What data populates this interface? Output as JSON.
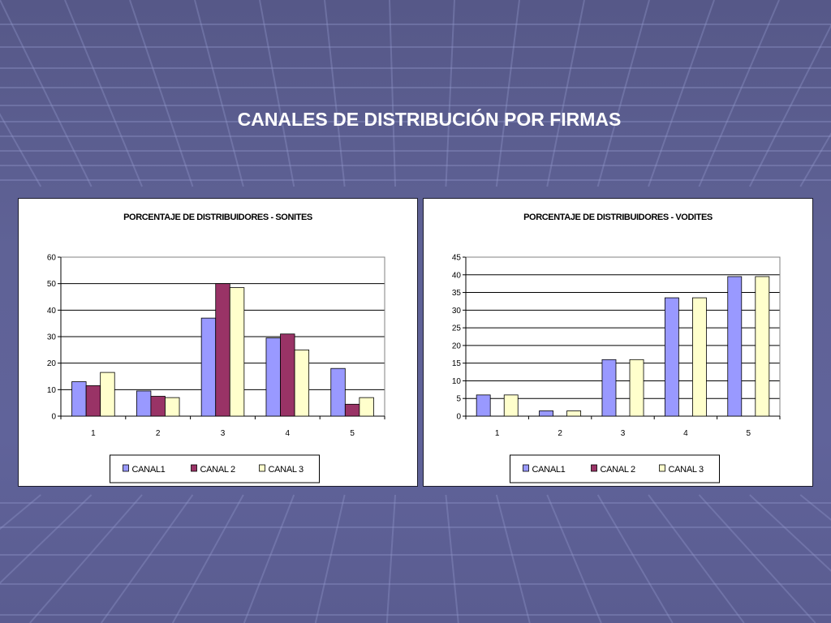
{
  "slide": {
    "title": "CANALES DE DISTRIBUCIÓN POR FIRMAS"
  },
  "colors": {
    "canal1": "#9999ff",
    "canal2": "#993366",
    "canal3": "#ffffcc",
    "background": "#5f6296"
  },
  "chart_data": [
    {
      "type": "bar",
      "title": "PORCENTAJE DE DISTRIBUIDORES - SONITES",
      "categories": [
        "1",
        "2",
        "3",
        "4",
        "5"
      ],
      "series": [
        {
          "name": "CANAL1",
          "values": [
            13,
            9.5,
            37,
            29.5,
            18
          ]
        },
        {
          "name": "CANAL 2",
          "values": [
            11.5,
            7.5,
            50,
            31,
            4.5
          ]
        },
        {
          "name": "CANAL 3",
          "values": [
            16.5,
            7,
            48.5,
            25,
            7
          ]
        }
      ],
      "xlabel": "",
      "ylabel": "",
      "ylim": [
        0,
        60
      ],
      "yticks": [
        0,
        10,
        20,
        30,
        40,
        50,
        60
      ],
      "grid": true,
      "legend": "bottom"
    },
    {
      "type": "bar",
      "title": "PORCENTAJE DE DISTRIBUIDORES - VODITES",
      "categories": [
        "1",
        "2",
        "3",
        "4",
        "5"
      ],
      "series": [
        {
          "name": "CANAL1",
          "values": [
            6,
            1.5,
            16,
            33.5,
            39.5
          ]
        },
        {
          "name": "CANAL 2",
          "values": [
            0,
            0,
            0,
            0,
            0
          ]
        },
        {
          "name": "CANAL 3",
          "values": [
            6,
            1.5,
            16,
            33.5,
            39.5
          ]
        }
      ],
      "xlabel": "",
      "ylabel": "",
      "ylim": [
        0,
        45
      ],
      "yticks": [
        0,
        5,
        10,
        15,
        20,
        25,
        30,
        35,
        40,
        45
      ],
      "grid": true,
      "legend": "bottom"
    }
  ]
}
